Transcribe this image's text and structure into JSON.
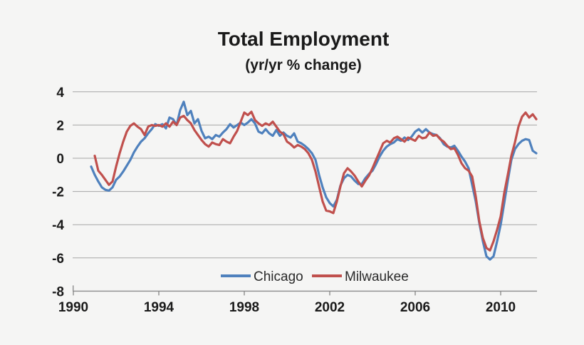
{
  "page": {
    "background": "#f5f5f4",
    "text_color": "#1a1a1a",
    "grid_color": "#a6a6a6",
    "axis_color": "#8c8c8c"
  },
  "chart_data": {
    "type": "line",
    "title": "Total Employment",
    "subtitle": "(yr/yr % change)",
    "xlabel": "",
    "ylabel": "",
    "xlim": [
      1990,
      2011.73
    ],
    "ylim": [
      -8,
      4
    ],
    "x_ticks": [
      1990,
      1994,
      1998,
      2002,
      2006,
      2010
    ],
    "y_ticks": [
      4,
      2,
      0,
      -2,
      -4,
      -6,
      -8
    ],
    "grid": "horizontal",
    "legend_position": "bottom-center-inside",
    "x_start": 1990.8333,
    "x_step": 0.166667,
    "x_unit": "year (monthly data, yr/yr % change)",
    "series": [
      {
        "name": "Chicago",
        "color": "#4f81bd",
        "values": [
          -0.5,
          -1.0,
          -1.4,
          -1.75,
          -1.9,
          -1.95,
          -1.75,
          -1.3,
          -1.1,
          -0.8,
          -0.45,
          -0.1,
          0.35,
          0.7,
          1.0,
          1.2,
          1.5,
          1.75,
          2.05,
          1.95,
          2.05,
          1.8,
          2.45,
          2.35,
          2.0,
          2.9,
          3.4,
          2.6,
          2.85,
          2.1,
          2.35,
          1.65,
          1.2,
          1.3,
          1.15,
          1.4,
          1.3,
          1.55,
          1.75,
          2.05,
          1.85,
          2.0,
          2.15,
          2.0,
          2.15,
          2.35,
          2.1,
          1.6,
          1.5,
          1.75,
          1.5,
          1.35,
          1.7,
          1.35,
          1.55,
          1.35,
          1.25,
          1.5,
          1.0,
          0.9,
          0.75,
          0.55,
          0.3,
          -0.1,
          -1.0,
          -1.75,
          -2.35,
          -2.7,
          -2.9,
          -2.5,
          -1.65,
          -1.2,
          -1.0,
          -1.1,
          -1.35,
          -1.55,
          -1.55,
          -1.2,
          -0.95,
          -0.75,
          -0.35,
          0.1,
          0.45,
          0.7,
          0.85,
          0.95,
          1.15,
          1.05,
          1.25,
          1.1,
          1.3,
          1.6,
          1.75,
          1.55,
          1.75,
          1.55,
          1.45,
          1.4,
          1.2,
          0.85,
          0.7,
          0.65,
          0.75,
          0.45,
          0.1,
          -0.2,
          -0.6,
          -1.6,
          -2.6,
          -3.9,
          -5.0,
          -5.9,
          -6.1,
          -5.9,
          -5.0,
          -4.0,
          -2.7,
          -1.35,
          -0.1,
          0.55,
          0.85,
          1.05,
          1.15,
          1.1,
          0.45,
          0.3
        ]
      },
      {
        "name": "Milwaukee",
        "color": "#c0504d",
        "values": [
          null,
          0.15,
          -0.75,
          -1.0,
          -1.3,
          -1.6,
          -1.4,
          -0.5,
          0.3,
          1.0,
          1.6,
          1.95,
          2.1,
          1.9,
          1.75,
          1.4,
          1.9,
          2.0,
          1.95,
          2.0,
          1.9,
          2.1,
          1.9,
          2.2,
          2.0,
          2.45,
          2.55,
          2.3,
          2.1,
          1.7,
          1.4,
          1.1,
          0.85,
          0.7,
          0.95,
          0.85,
          0.8,
          1.15,
          1.0,
          0.9,
          1.3,
          1.65,
          2.2,
          2.75,
          2.6,
          2.8,
          2.3,
          2.1,
          1.95,
          2.1,
          2.0,
          2.2,
          1.9,
          1.6,
          1.45,
          1.0,
          0.85,
          0.65,
          0.8,
          0.7,
          0.55,
          0.3,
          -0.1,
          -0.8,
          -1.7,
          -2.6,
          -3.15,
          -3.2,
          -3.3,
          -2.6,
          -1.7,
          -0.9,
          -0.6,
          -0.8,
          -1.05,
          -1.4,
          -1.7,
          -1.35,
          -1.05,
          -0.6,
          -0.1,
          0.4,
          0.9,
          1.05,
          0.95,
          1.2,
          1.3,
          1.15,
          1.0,
          1.25,
          1.15,
          1.05,
          1.35,
          1.2,
          1.25,
          1.55,
          1.35,
          1.4,
          1.15,
          1.0,
          0.75,
          0.55,
          0.6,
          0.2,
          -0.3,
          -0.6,
          -0.75,
          -1.1,
          -2.3,
          -3.8,
          -4.8,
          -5.4,
          -5.55,
          -5.0,
          -4.3,
          -3.5,
          -2.1,
          -1.0,
          0.15,
          0.95,
          1.9,
          2.5,
          2.75,
          2.45,
          2.65,
          2.35
        ]
      }
    ]
  }
}
